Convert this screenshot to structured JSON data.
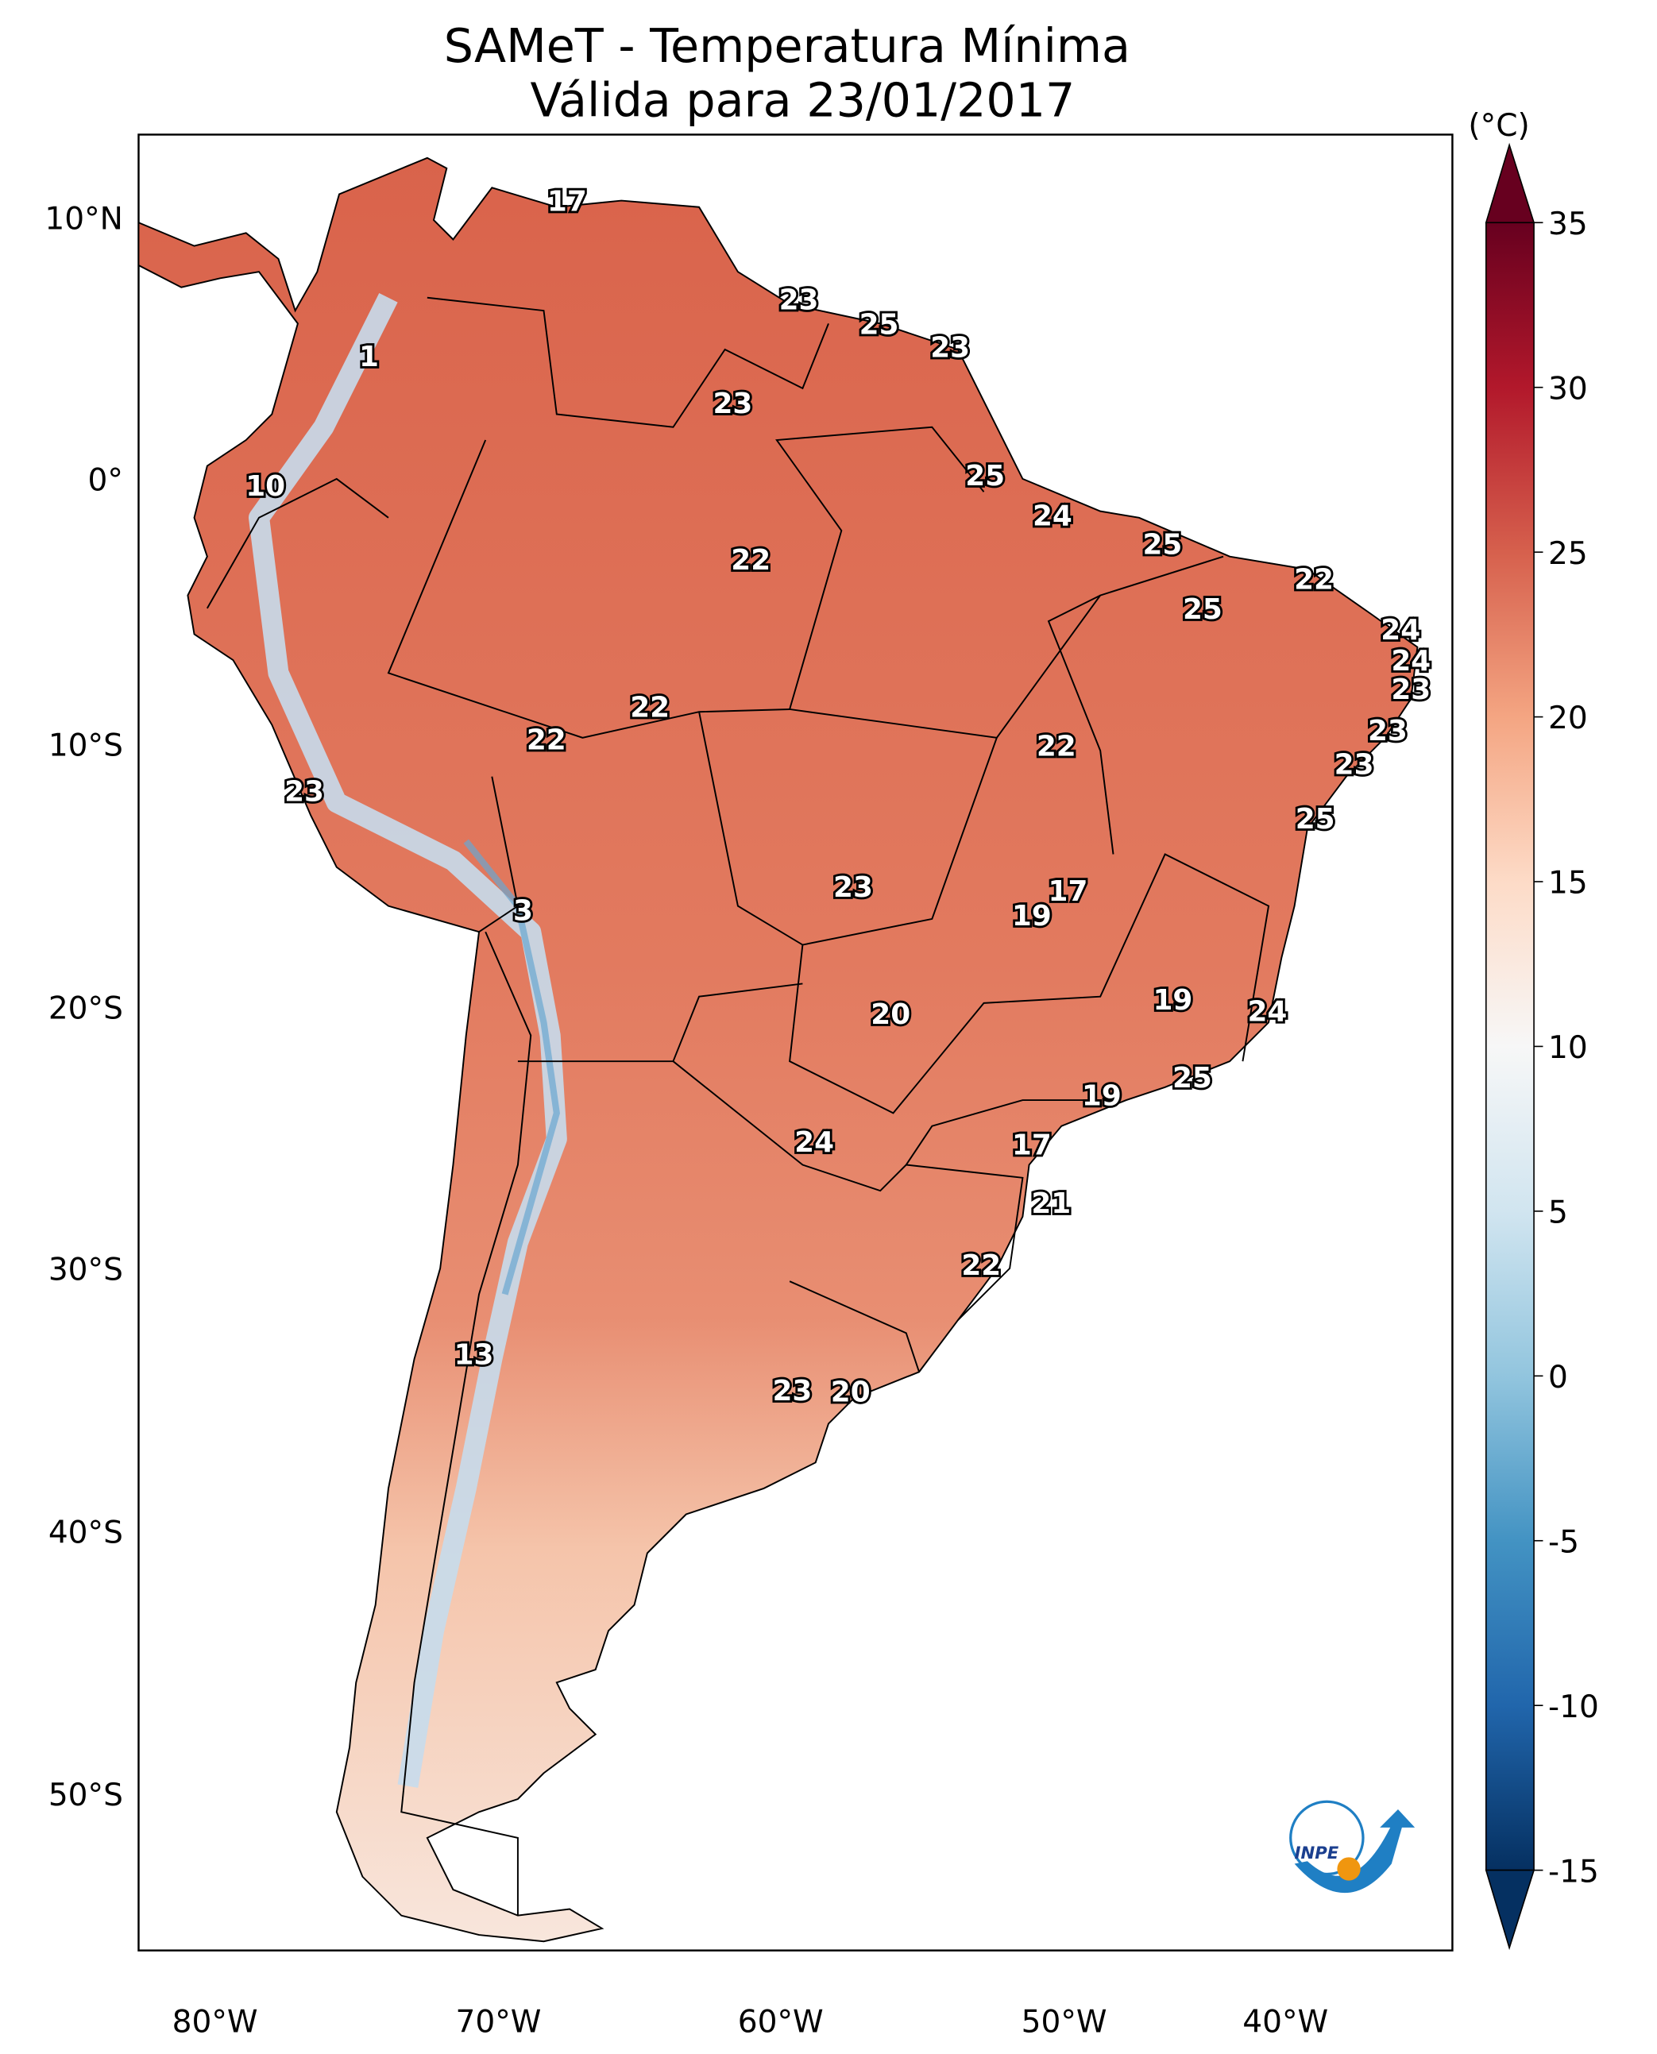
{
  "title": {
    "line1": "SAMeT - Temperatura Mínima",
    "line2": "Válida para 23/01/2017"
  },
  "map": {
    "lat_ticks": [
      "10°N",
      "0°",
      "10°S",
      "20°S",
      "30°S",
      "40°S",
      "50°S"
    ],
    "lon_ticks": [
      "80°W",
      "70°W",
      "60°W",
      "50°W",
      "40°W"
    ],
    "point_labels": [
      "17",
      "23",
      "25",
      "23",
      "1",
      "23",
      "10",
      "25",
      "24",
      "25",
      "22",
      "22",
      "25",
      "24",
      "24",
      "23",
      "22",
      "22",
      "22",
      "23",
      "23",
      "23",
      "25",
      "23",
      "17",
      "19",
      "3",
      "19",
      "20",
      "24",
      "25",
      "19",
      "24",
      "17",
      "21",
      "22",
      "13",
      "23",
      "20"
    ]
  },
  "colorbar": {
    "unit": "(°C)",
    "ticks": [
      "35",
      "30",
      "25",
      "20",
      "15",
      "10",
      "5",
      "0",
      "-5",
      "-10",
      "-15"
    ],
    "range": [
      -15,
      35
    ],
    "colormap": "RdBu_r",
    "extend": "both",
    "colors": [
      "#67001f",
      "#b2182b",
      "#d6604d",
      "#f4a582",
      "#fddbc7",
      "#f7f7f7",
      "#d1e5f0",
      "#92c5de",
      "#4393c3",
      "#2166ac",
      "#053061"
    ]
  },
  "logo": {
    "text": "INPE",
    "blue": "#1f7fc4",
    "orange": "#f0960f"
  }
}
